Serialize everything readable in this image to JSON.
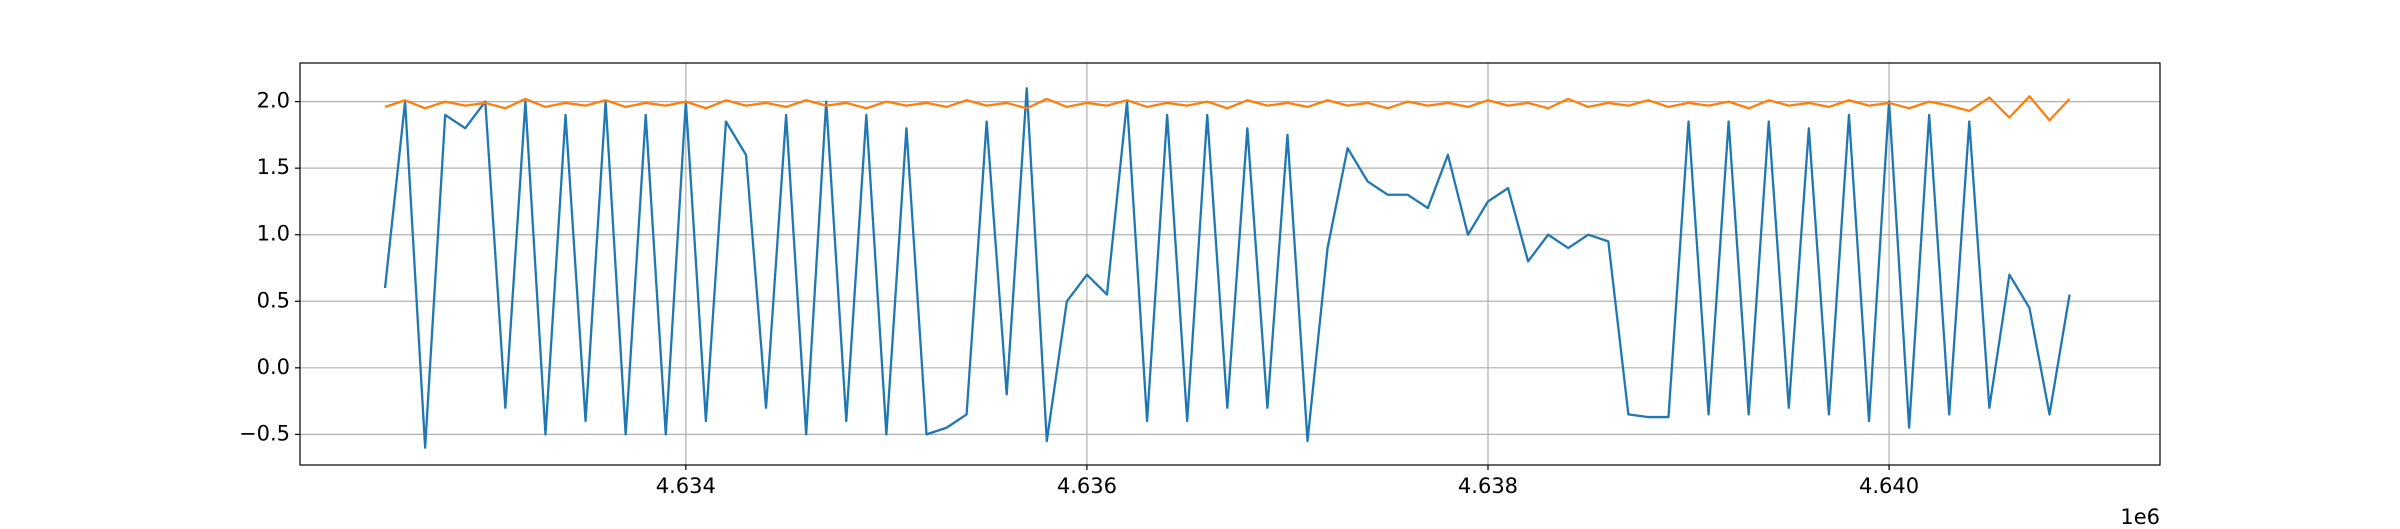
{
  "chart_data": {
    "type": "line",
    "x_offset_label": "1e6",
    "xlim": [
      4632076,
      4641351
    ],
    "ylim": [
      -0.73,
      2.29
    ],
    "xticks": [
      {
        "value": 4634000,
        "label": "4.634"
      },
      {
        "value": 4636000,
        "label": "4.636"
      },
      {
        "value": 4638000,
        "label": "4.638"
      },
      {
        "value": 4640000,
        "label": "4.640"
      }
    ],
    "yticks": [
      {
        "value": -0.5,
        "label": "−0.5"
      },
      {
        "value": 0,
        "label": "0.0"
      },
      {
        "value": 0.5,
        "label": "0.5"
      },
      {
        "value": 1,
        "label": "1.0"
      },
      {
        "value": 1.5,
        "label": "1.5"
      },
      {
        "value": 2,
        "label": "2.0"
      }
    ],
    "grid": true,
    "x": [
      4632500,
      4632600,
      4632700,
      4632800,
      4632900,
      4633000,
      4633100,
      4633200,
      4633300,
      4633400,
      4633500,
      4633600,
      4633700,
      4633800,
      4633900,
      4634000,
      4634100,
      4634200,
      4634300,
      4634400,
      4634500,
      4634600,
      4634700,
      4634800,
      4634900,
      4635000,
      4635100,
      4635200,
      4635300,
      4635400,
      4635500,
      4635600,
      4635700,
      4635800,
      4635900,
      4636000,
      4636100,
      4636200,
      4636300,
      4636400,
      4636500,
      4636600,
      4636700,
      4636800,
      4636900,
      4637000,
      4637100,
      4637200,
      4637300,
      4637400,
      4637500,
      4637600,
      4637700,
      4637800,
      4637900,
      4638000,
      4638100,
      4638200,
      4638300,
      4638400,
      4638500,
      4638600,
      4638700,
      4638800,
      4638900,
      4639000,
      4639100,
      4639200,
      4639300,
      4639400,
      4639500,
      4639600,
      4639700,
      4639800,
      4639900,
      4640000,
      4640100,
      4640200,
      4640300,
      4640400,
      4640500,
      4640600,
      4640700,
      4640800,
      4640900
    ],
    "series": [
      {
        "color": "#1f77b4",
        "values": [
          0.6,
          2.0,
          -0.6,
          1.9,
          1.8,
          2.0,
          -0.3,
          2.0,
          -0.5,
          1.9,
          -0.4,
          2.0,
          -0.5,
          1.9,
          -0.5,
          2.0,
          -0.4,
          1.85,
          1.6,
          -0.3,
          1.9,
          -0.5,
          2.0,
          -0.4,
          1.9,
          -0.5,
          1.8,
          -0.5,
          -0.45,
          -0.35,
          1.85,
          -0.2,
          2.1,
          -0.55,
          0.5,
          0.7,
          0.55,
          2.0,
          -0.4,
          1.9,
          -0.4,
          1.9,
          -0.3,
          1.8,
          -0.3,
          1.75,
          -0.55,
          0.9,
          1.65,
          1.4,
          1.3,
          1.3,
          1.2,
          1.6,
          1.0,
          1.25,
          1.35,
          0.8,
          1.0,
          0.9,
          1.0,
          0.95,
          -0.35,
          -0.37,
          -0.37,
          1.85,
          -0.35,
          1.85,
          -0.35,
          1.85,
          -0.3,
          1.8,
          -0.35,
          1.9,
          -0.4,
          2.0,
          -0.45,
          1.9,
          -0.35,
          1.85,
          -0.3,
          0.7,
          0.45,
          -0.35,
          0.55
        ]
      },
      {
        "color": "#ff7f0e",
        "values": [
          1.96,
          2.01,
          1.95,
          2.0,
          1.97,
          1.99,
          1.95,
          2.02,
          1.96,
          1.99,
          1.97,
          2.01,
          1.96,
          1.99,
          1.97,
          2.0,
          1.95,
          2.01,
          1.97,
          1.99,
          1.96,
          2.01,
          1.97,
          1.99,
          1.95,
          2.0,
          1.97,
          1.99,
          1.96,
          2.01,
          1.97,
          1.99,
          1.95,
          2.02,
          1.96,
          1.99,
          1.97,
          2.01,
          1.96,
          1.99,
          1.97,
          2.0,
          1.95,
          2.01,
          1.97,
          1.99,
          1.96,
          2.01,
          1.97,
          1.99,
          1.95,
          2.0,
          1.97,
          1.99,
          1.96,
          2.01,
          1.97,
          1.99,
          1.95,
          2.02,
          1.96,
          1.99,
          1.97,
          2.01,
          1.96,
          1.99,
          1.97,
          2.0,
          1.95,
          2.01,
          1.97,
          1.99,
          1.96,
          2.01,
          1.97,
          1.99,
          1.95,
          2.0,
          1.97,
          1.93,
          2.03,
          1.88,
          2.04,
          1.86,
          2.02
        ]
      }
    ]
  }
}
